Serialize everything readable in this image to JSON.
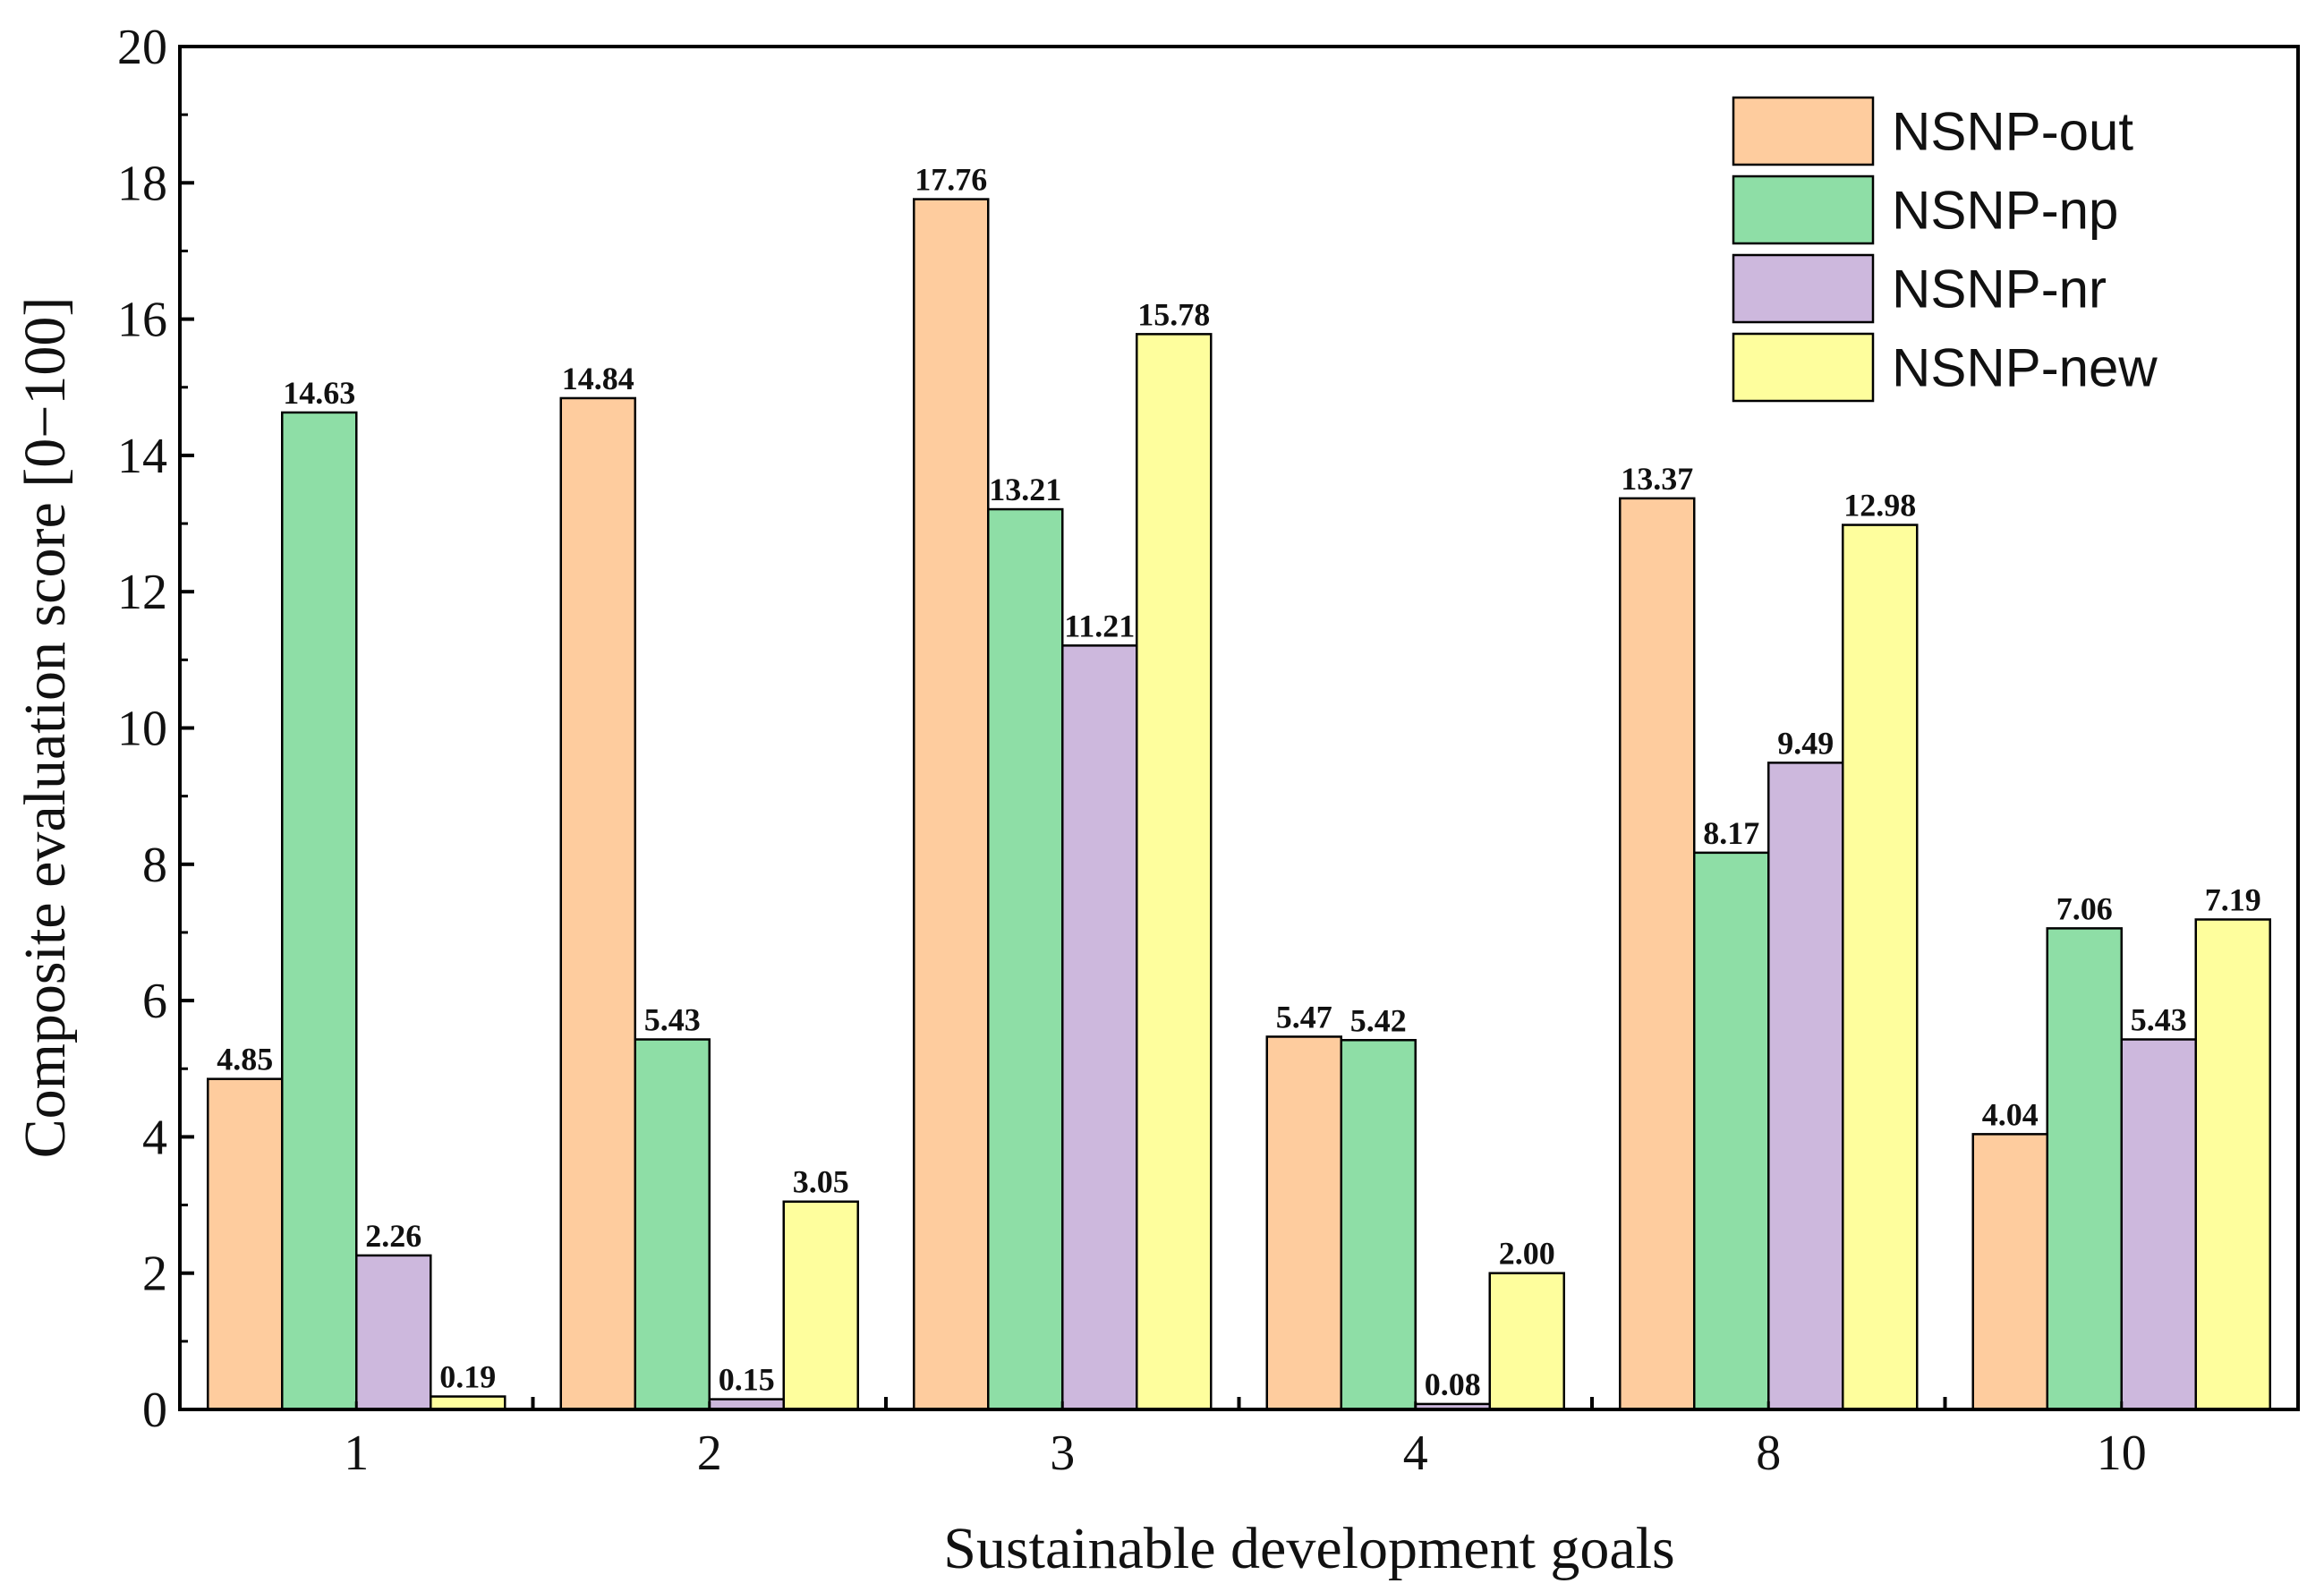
{
  "chart_data": {
    "type": "bar",
    "title": "",
    "xlabel": "Sustainable development goals",
    "ylabel": "Composite evaluation score [0−100]",
    "ylim": [
      0,
      20
    ],
    "yticks": [
      "0",
      "2",
      "4",
      "6",
      "8",
      "10",
      "12",
      "14",
      "16",
      "18",
      "20"
    ],
    "categories": [
      "1",
      "2",
      "3",
      "4",
      "8",
      "10"
    ],
    "legend_position": "top-right",
    "grid": false,
    "series": [
      {
        "name": "NSNP-out",
        "color": "#FECC9E",
        "values": [
          4.85,
          14.84,
          17.76,
          5.47,
          13.37,
          4.04
        ],
        "labels": [
          "4.85",
          "14.84",
          "17.76",
          "5.47",
          "13.37",
          "4.04"
        ]
      },
      {
        "name": "NSNP-np",
        "color": "#8EDEA6",
        "values": [
          14.63,
          5.43,
          13.21,
          5.42,
          8.17,
          7.06
        ],
        "labels": [
          "14.63",
          "5.43",
          "13.21",
          "5.42",
          "8.17",
          "7.06"
        ]
      },
      {
        "name": "NSNP-nr",
        "color": "#CDB8DD",
        "values": [
          2.26,
          0.15,
          11.21,
          0.08,
          9.49,
          5.43
        ],
        "labels": [
          "2.26",
          "0.15",
          "11.21",
          "0.08",
          "9.49",
          "5.43"
        ]
      },
      {
        "name": "NSNP-new",
        "color": "#FEFE9D",
        "values": [
          0.19,
          3.05,
          15.78,
          2.0,
          12.98,
          7.19
        ],
        "labels": [
          "0.19",
          "3.05",
          "15.78",
          "2.00",
          "12.98",
          "7.19"
        ]
      }
    ]
  }
}
